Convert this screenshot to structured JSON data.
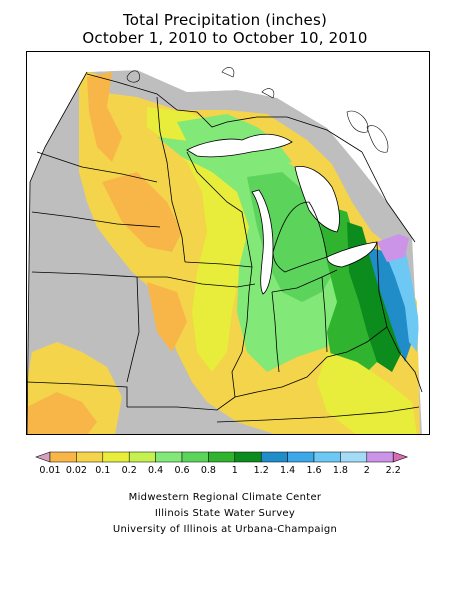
{
  "header": {
    "title": "Total Precipitation (inches)",
    "subtitle": "October 1, 2010 to October 10, 2010"
  },
  "map": {
    "no_data_color": "#bebebe",
    "state_line_color": "#000000",
    "region": "Midwest United States",
    "pattern": "light totals across the west and north, green band through Michigan, Indiana and Ohio, heaviest (blue/purple) along far eastern Ohio"
  },
  "legend": {
    "ticks": [
      "0.01",
      "0.02",
      "0.1",
      "0.2",
      "0.4",
      "0.6",
      "0.8",
      "1",
      "1.2",
      "1.4",
      "1.6",
      "1.8",
      "2",
      "2.2"
    ],
    "below_color": "#d6a0c0",
    "above_color": "#d86cb4",
    "colors": [
      "#f8b648",
      "#f4d44a",
      "#e8ec3a",
      "#c4f050",
      "#82e878",
      "#5cd45c",
      "#30b430",
      "#0c8c1c",
      "#208cc8",
      "#3ca8e8",
      "#6ec8f4",
      "#a4dcf8",
      "#cc94e8"
    ]
  },
  "credits": {
    "line1": "Midwestern Regional Climate Center",
    "line2": "Illinois State Water Survey",
    "line3": "University of Illinois at Urbana-Champaign"
  }
}
